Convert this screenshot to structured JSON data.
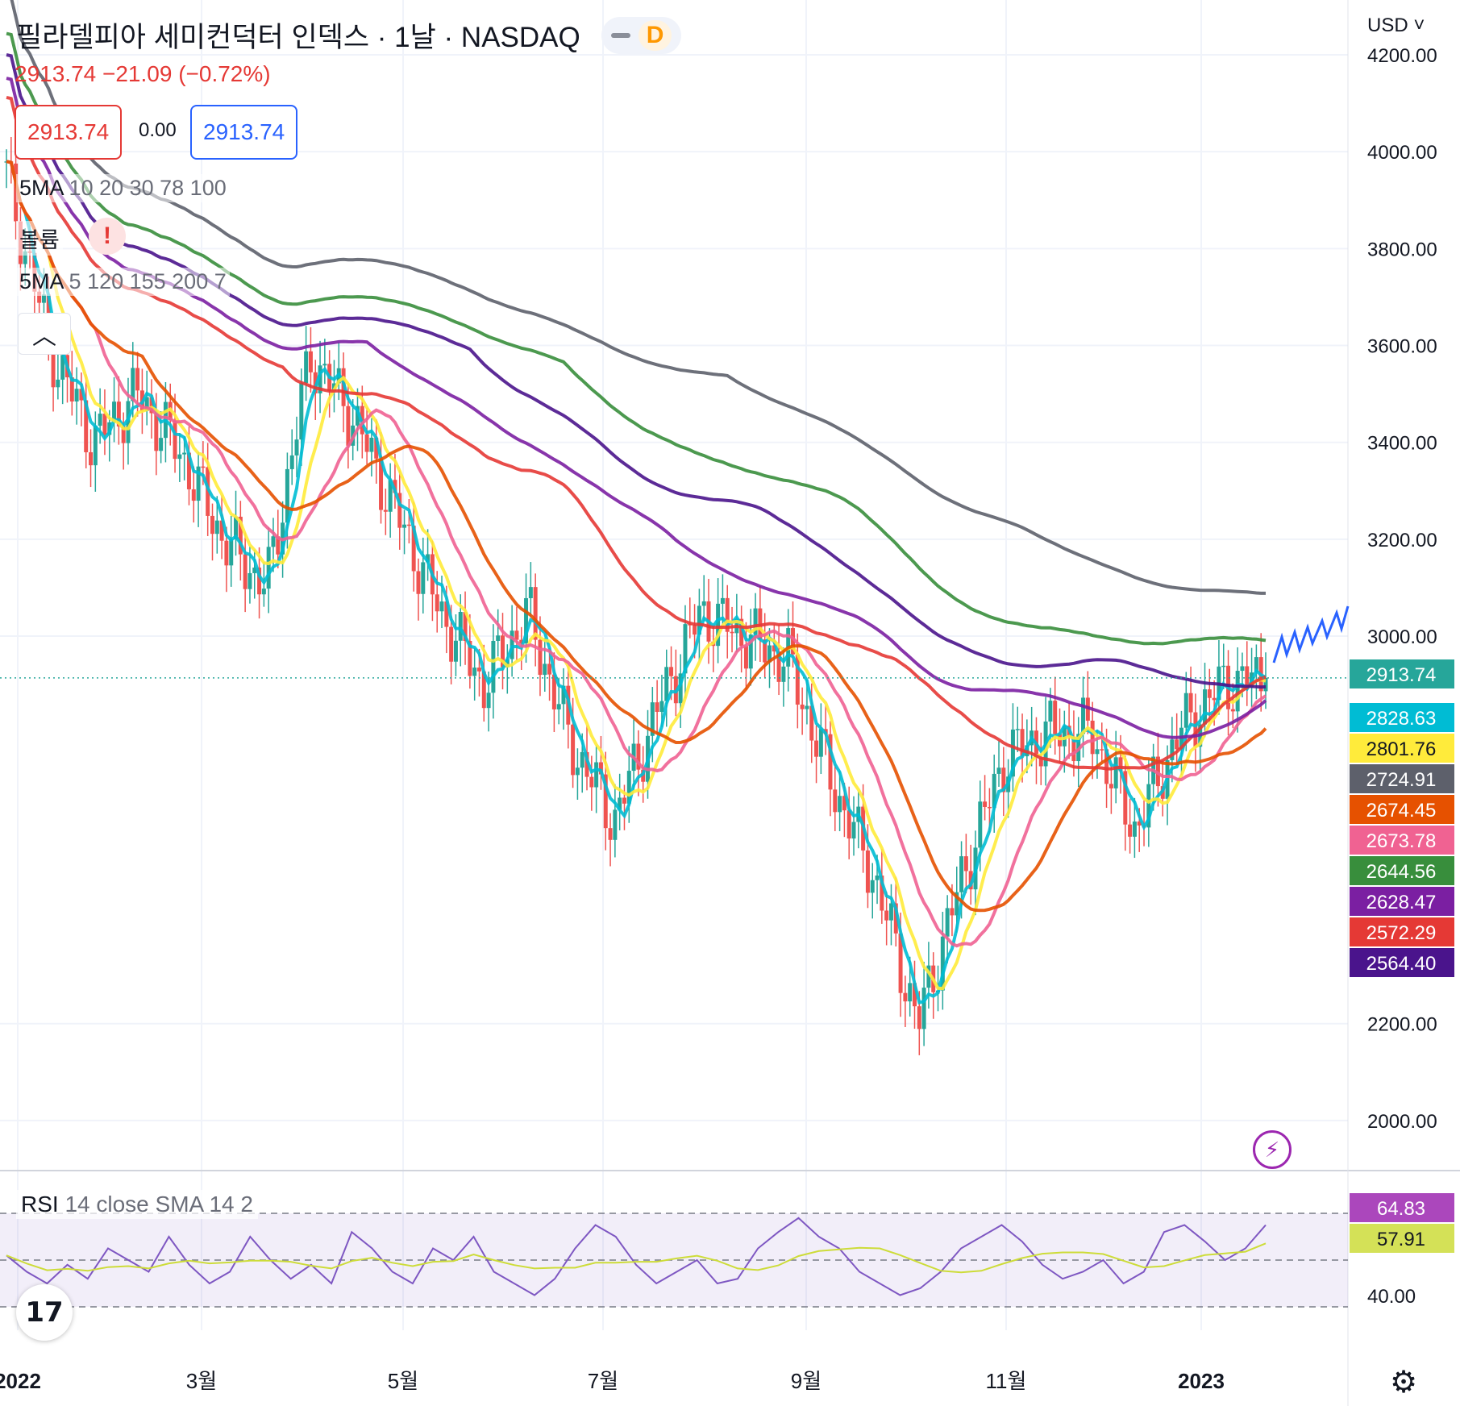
{
  "header": {
    "title": "필라델피아 세미컨덕터 인덱스 · 1날 · NASDAQ",
    "badge": "D",
    "price_change": "2913.74  −21.09 (−0.72%)",
    "bid": "2913.74",
    "spread": "0.00",
    "ask": "2913.74",
    "currency": "USD"
  },
  "indicators": [
    {
      "name": "5MA",
      "params": "10 20 30 78 100"
    },
    {
      "name": "볼륨",
      "params": ""
    },
    {
      "name": "5MA",
      "params": "5 120 155 200 7"
    }
  ],
  "rsi": {
    "name": "RSI",
    "params": "14 close SMA 14 2",
    "value": "64.83",
    "sma": "57.91",
    "tick": "40.00"
  },
  "icons": {
    "logo": "tradingview-logo-icon",
    "alert": "alert-icon",
    "settings": "gear-icon",
    "collapse": "chevron-up-icon",
    "lightning": "lightning-icon"
  },
  "colors": {
    "up": "#26a69a",
    "down": "#ef5350"
  },
  "chart_data": {
    "type": "candlestick",
    "symbol": "SOX",
    "y_ticks": [
      "4200.00",
      "4000.00",
      "3800.00",
      "3600.00",
      "3400.00",
      "3200.00",
      "3000.00",
      "2200.00",
      "2000.00"
    ],
    "ylim": [
      1900,
      4200
    ],
    "x_ticks": [
      "2022",
      "3월",
      "5월",
      "7월",
      "9월",
      "11월",
      "2023"
    ],
    "last_price": 2913.74,
    "ma_labels": [
      {
        "value": "2913.74",
        "color": "#26a69a"
      },
      {
        "value": "2828.63",
        "color": "#00bcd4"
      },
      {
        "value": "2801.76",
        "color": "#ffeb3b"
      },
      {
        "value": "2724.91",
        "color": "#5d606b"
      },
      {
        "value": "2674.45",
        "color": "#e65100"
      },
      {
        "value": "2673.78",
        "color": "#f06292"
      },
      {
        "value": "2644.56",
        "color": "#388e3c"
      },
      {
        "value": "2628.47",
        "color": "#7b1fa2"
      },
      {
        "value": "2572.29",
        "color": "#e53935"
      },
      {
        "value": "2564.40",
        "color": "#4a148c"
      }
    ],
    "close_series": {
      "x": [
        "2022-01-03",
        "2022-01-20",
        "2022-02-01",
        "2022-02-15",
        "2022-03-01",
        "2022-03-08",
        "2022-03-15",
        "2022-03-29",
        "2022-04-05",
        "2022-04-15",
        "2022-04-29",
        "2022-05-12",
        "2022-05-31",
        "2022-06-16",
        "2022-06-30",
        "2022-07-15",
        "2022-08-01",
        "2022-08-12",
        "2022-08-31",
        "2022-09-15",
        "2022-09-30",
        "2022-10-13",
        "2022-10-31",
        "2022-11-15",
        "2022-11-30",
        "2022-12-15",
        "2022-12-29",
        "2023-01-10",
        "2023-01-20",
        "2023-01-24"
      ],
      "values": [
        3950,
        3600,
        3400,
        3500,
        3380,
        3200,
        3100,
        3580,
        3450,
        3250,
        3050,
        2900,
        3050,
        2780,
        2620,
        2850,
        3050,
        3000,
        2950,
        2700,
        2500,
        2200,
        2500,
        2750,
        2800,
        2800,
        2600,
        2800,
        2900,
        2913.74
      ]
    },
    "rsi_series": {
      "values": [
        52,
        45,
        40,
        48,
        42,
        55,
        50,
        45,
        60,
        48,
        40,
        45,
        60,
        50,
        42,
        48,
        40,
        62,
        55,
        45,
        40,
        55,
        50,
        60,
        45,
        40,
        35,
        42,
        55,
        65,
        60,
        48,
        40,
        45,
        50,
        40,
        42,
        55,
        62,
        68,
        60,
        55,
        45,
        40,
        35,
        38,
        45,
        55,
        60,
        65,
        58,
        48,
        42,
        45,
        50,
        40,
        45,
        62,
        65,
        58,
        50,
        55,
        65
      ],
      "ylim": [
        20,
        80
      ]
    }
  }
}
